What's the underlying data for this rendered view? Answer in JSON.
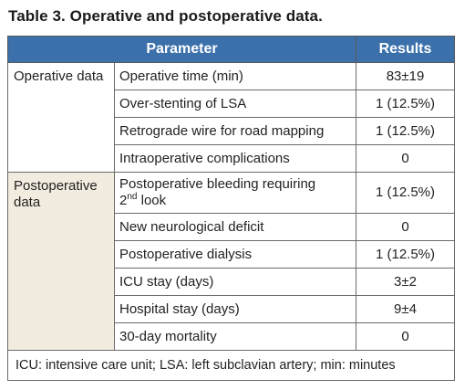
{
  "caption": "Table 3. Operative and postoperative data.",
  "header": {
    "parameter": "Parameter",
    "results": "Results"
  },
  "groups": [
    {
      "label": "Operative data",
      "rows": [
        {
          "param": "Operative time (min)",
          "value": "83±19"
        },
        {
          "param": "Over-stenting of LSA",
          "value": "1 (12.5%)"
        },
        {
          "param": "Retrograde wire for road mapping",
          "value": "1 (12.5%)"
        },
        {
          "param": "Intraoperative complications",
          "value": "0"
        }
      ]
    },
    {
      "label": "Postoperative data",
      "rows": [
        {
          "param": "Postoperative bleeding requiring",
          "param_sup_num": "2",
          "param_sup": "nd",
          "param_tail": " look",
          "value": "1 (12.5%)"
        },
        {
          "param": "New neurological deficit",
          "value": "0"
        },
        {
          "param": "Postoperative dialysis",
          "value": "1 (12.5%)"
        },
        {
          "param": "ICU stay (days)",
          "value": "3±2"
        },
        {
          "param": "Hospital stay (days)",
          "value": "9±4"
        },
        {
          "param": "30-day mortality",
          "value": "0"
        }
      ]
    }
  ],
  "footnote": "ICU: intensive care unit; LSA: left subclavian artery; min: minutes",
  "colors": {
    "header_bg": "#3b70ab",
    "band_bg": "#f2ebdf"
  }
}
